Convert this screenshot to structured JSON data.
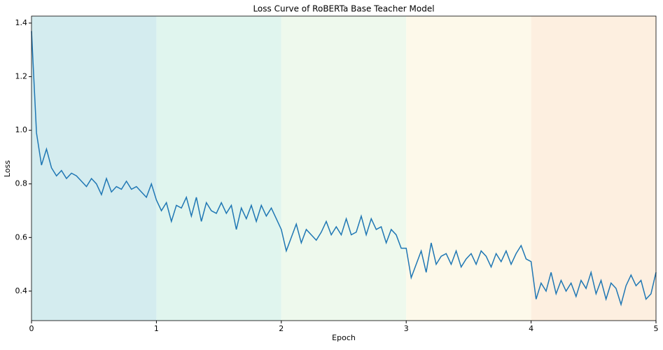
{
  "chart_data": {
    "type": "line",
    "title": "Loss Curve of RoBERTa Base Teacher Model",
    "xlabel": "Epoch",
    "ylabel": "Loss",
    "x": [
      0,
      0.04,
      0.08,
      0.12,
      0.16,
      0.2,
      0.24,
      0.28,
      0.32,
      0.36,
      0.4,
      0.44,
      0.48,
      0.52,
      0.56,
      0.6,
      0.64,
      0.68,
      0.72,
      0.76,
      0.8,
      0.84,
      0.88,
      0.92,
      0.96,
      1,
      1.04,
      1.08,
      1.12,
      1.16,
      1.2,
      1.24,
      1.28,
      1.32,
      1.36,
      1.4,
      1.44,
      1.48,
      1.52,
      1.56,
      1.6,
      1.64,
      1.68,
      1.72,
      1.76,
      1.8,
      1.84,
      1.88,
      1.92,
      1.96,
      2,
      2.04,
      2.08,
      2.12,
      2.16,
      2.2,
      2.24,
      2.28,
      2.32,
      2.36,
      2.4,
      2.44,
      2.48,
      2.52,
      2.56,
      2.6,
      2.64,
      2.68,
      2.72,
      2.76,
      2.8,
      2.84,
      2.88,
      2.92,
      2.96,
      3,
      3.04,
      3.08,
      3.12,
      3.16,
      3.2,
      3.24,
      3.28,
      3.32,
      3.36,
      3.4,
      3.44,
      3.48,
      3.52,
      3.56,
      3.6,
      3.64,
      3.68,
      3.72,
      3.76,
      3.8,
      3.84,
      3.88,
      3.92,
      3.96,
      4,
      4.04,
      4.08,
      4.12,
      4.16,
      4.2,
      4.24,
      4.28,
      4.32,
      4.36,
      4.4,
      4.44,
      4.48,
      4.52,
      4.56,
      4.6,
      4.64,
      4.68,
      4.72,
      4.76,
      4.8,
      4.84,
      4.88,
      4.92,
      4.96,
      5
    ],
    "series": [
      {
        "color": "#1f77b4",
        "values": [
          1.37,
          0.99,
          0.87,
          0.93,
          0.86,
          0.83,
          0.85,
          0.82,
          0.84,
          0.83,
          0.81,
          0.79,
          0.82,
          0.8,
          0.76,
          0.82,
          0.77,
          0.79,
          0.78,
          0.81,
          0.78,
          0.79,
          0.77,
          0.75,
          0.8,
          0.74,
          0.7,
          0.73,
          0.66,
          0.72,
          0.71,
          0.75,
          0.68,
          0.75,
          0.66,
          0.73,
          0.7,
          0.69,
          0.73,
          0.69,
          0.72,
          0.63,
          0.71,
          0.67,
          0.72,
          0.66,
          0.72,
          0.68,
          0.71,
          0.67,
          0.63,
          0.55,
          0.6,
          0.65,
          0.58,
          0.63,
          0.61,
          0.59,
          0.62,
          0.66,
          0.61,
          0.64,
          0.61,
          0.67,
          0.61,
          0.62,
          0.68,
          0.61,
          0.67,
          0.63,
          0.64,
          0.58,
          0.63,
          0.61,
          0.56,
          0.56,
          0.45,
          0.5,
          0.55,
          0.47,
          0.58,
          0.5,
          0.53,
          0.54,
          0.5,
          0.55,
          0.49,
          0.52,
          0.54,
          0.5,
          0.55,
          0.53,
          0.49,
          0.54,
          0.51,
          0.55,
          0.5,
          0.54,
          0.57,
          0.52,
          0.51,
          0.37,
          0.43,
          0.4,
          0.47,
          0.39,
          0.44,
          0.4,
          0.43,
          0.38,
          0.44,
          0.41,
          0.47,
          0.39,
          0.44,
          0.37,
          0.43,
          0.41,
          0.35,
          0.42,
          0.46,
          0.42,
          0.44,
          0.37,
          0.39,
          0.47
        ]
      }
    ],
    "shaded_regions": [
      {
        "xlim": [
          0,
          1
        ],
        "color": "#d4ecef"
      },
      {
        "xlim": [
          1,
          2
        ],
        "color": "#e0f5ee"
      },
      {
        "xlim": [
          2,
          3
        ],
        "color": "#eef9ed"
      },
      {
        "xlim": [
          3,
          4
        ],
        "color": "#fdf9ea"
      },
      {
        "xlim": [
          4,
          5
        ],
        "color": "#fdefe0"
      }
    ],
    "xlim": [
      0,
      5
    ],
    "ylim": [
      0.29,
      1.426
    ],
    "xticks": [
      0,
      1,
      2,
      3,
      4,
      5
    ],
    "yticks": [
      0.4,
      0.6,
      0.8,
      {
        "value": 1.0,
        "label": "1.0"
      },
      1.2,
      1.4
    ],
    "grid": false
  }
}
